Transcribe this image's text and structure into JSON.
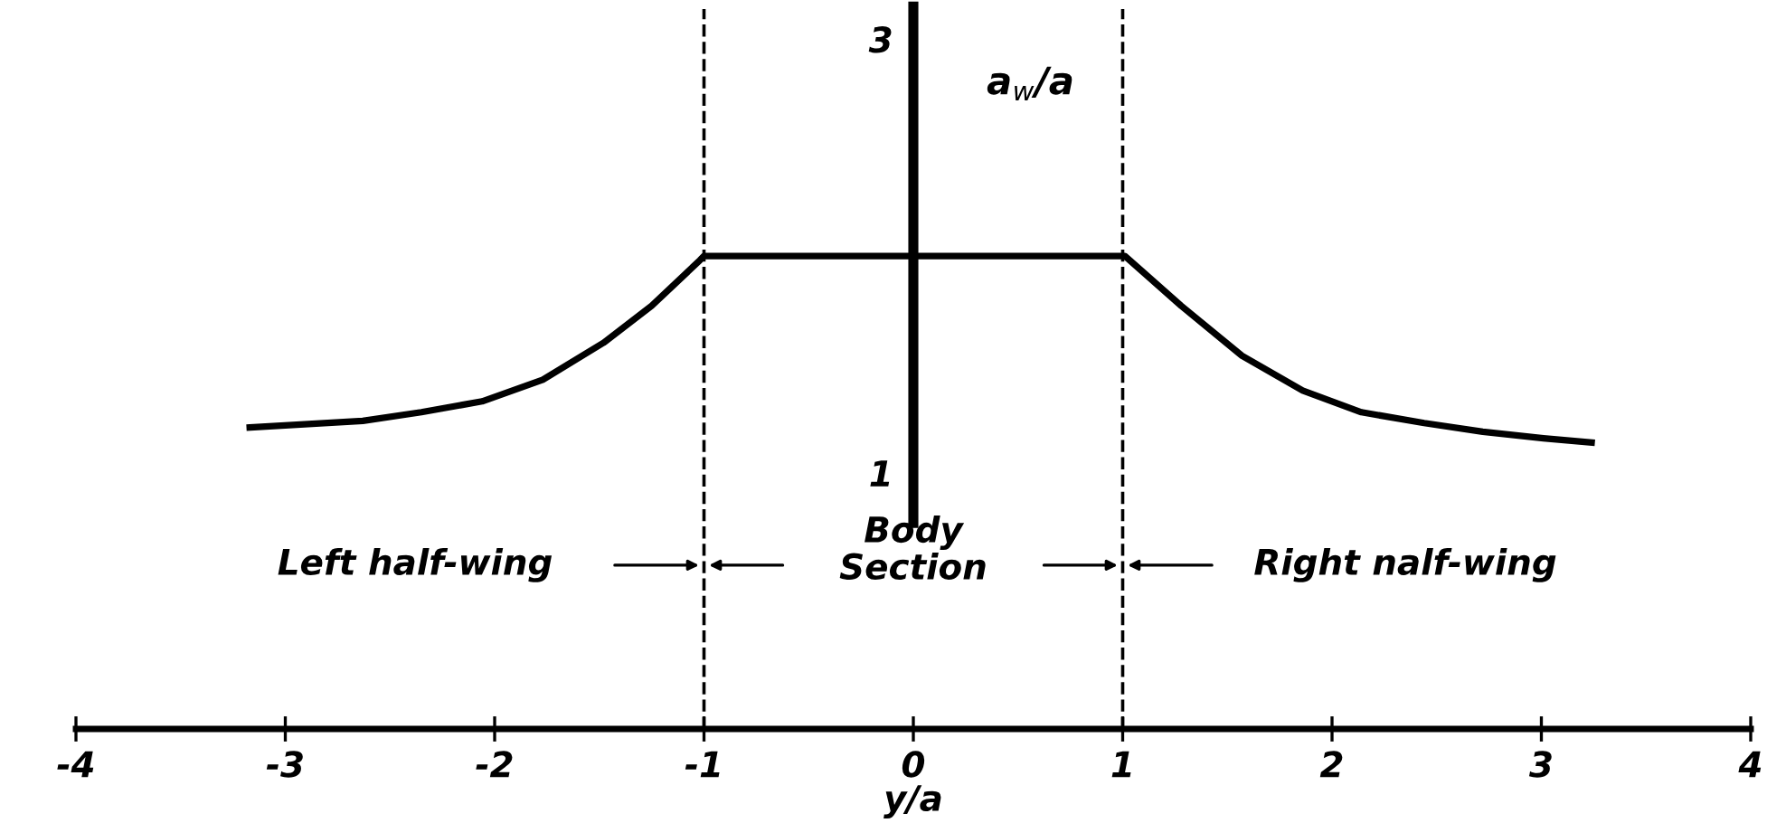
{
  "chart_data": {
    "type": "line",
    "xlabel": "y/a",
    "ylabel": "a$_{w}$/a",
    "x": [
      -3.17,
      -2.63,
      -2.35,
      -2.06,
      -1.77,
      -1.48,
      -1.25,
      -1.02,
      -1,
      1,
      1.01,
      1.28,
      1.57,
      1.86,
      2.14,
      2.44,
      2.72,
      3.01,
      3.24
    ],
    "series": [
      {
        "color": "#000000",
        "values": [
          1.21,
          1.24,
          1.28,
          1.33,
          1.43,
          1.6,
          1.77,
          1.98,
          2,
          2,
          2,
          1.77,
          1.54,
          1.38,
          1.28,
          1.23,
          1.19,
          1.16,
          1.14
        ]
      }
    ],
    "xlim": [
      -4,
      4
    ],
    "ylim": [
      -0.18,
      3.18
    ],
    "xticks": [
      -4,
      -3,
      -2,
      -1,
      0,
      1,
      2,
      3,
      4
    ],
    "yticks": [
      1,
      3
    ],
    "ref_lines": [
      {
        "axis": "x",
        "value": -1,
        "line_style": "dashed"
      },
      {
        "axis": "x",
        "value": 1,
        "line_style": "dashed"
      }
    ],
    "annotations": [
      "Left half-wing",
      "Body\nSection",
      "Right nalf-wing"
    ],
    "grid": false,
    "legend": false,
    "marker": "none",
    "line_style": "solid"
  }
}
